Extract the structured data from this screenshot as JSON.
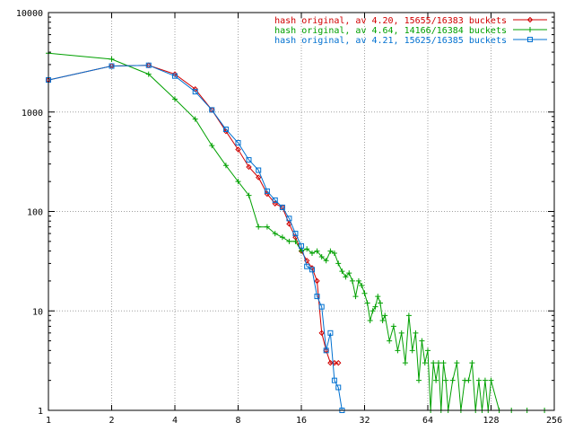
{
  "chart_data": {
    "type": "line",
    "title": "",
    "xlabel": "",
    "ylabel": "",
    "x_scale": "log2",
    "y_scale": "log10",
    "xlim": [
      1,
      256
    ],
    "ylim": [
      1,
      10000
    ],
    "grid": true,
    "legend_position": "top-right",
    "x_ticks": [
      {
        "value": 1,
        "label": "1"
      },
      {
        "value": 2,
        "label": "2"
      },
      {
        "value": 4,
        "label": "4"
      },
      {
        "value": 8,
        "label": "8"
      },
      {
        "value": 16,
        "label": "16"
      },
      {
        "value": 32,
        "label": "32"
      },
      {
        "value": 64,
        "label": "64"
      },
      {
        "value": 128,
        "label": "128"
      },
      {
        "value": 256,
        "label": "256"
      }
    ],
    "y_ticks": [
      {
        "value": 1,
        "label": "1"
      },
      {
        "value": 10,
        "label": "10"
      },
      {
        "value": 100,
        "label": "100"
      },
      {
        "value": 1000,
        "label": "1000"
      },
      {
        "value": 10000,
        "label": "10000"
      }
    ],
    "series": [
      {
        "name": "hash original, av 4.20, 15655/16383 buckets",
        "color": "#d00000",
        "marker": "diamond",
        "x": [
          1,
          2,
          3,
          4,
          5,
          6,
          7,
          8,
          9,
          10,
          11,
          12,
          13,
          14,
          15,
          16,
          17,
          18,
          19,
          20,
          21,
          22,
          23,
          24
        ],
        "y": [
          2100,
          2900,
          2950,
          2400,
          1700,
          1050,
          640,
          420,
          280,
          220,
          150,
          120,
          110,
          75,
          55,
          40,
          32,
          27,
          20,
          6,
          4,
          3,
          3,
          3
        ]
      },
      {
        "name": "hash original, av 4.64, 14166/16384 buckets",
        "color": "#00a000",
        "marker": "plus",
        "x": [
          1,
          2,
          3,
          4,
          5,
          6,
          7,
          8,
          9,
          10,
          11,
          12,
          13,
          14,
          15,
          16,
          17,
          18,
          19,
          20,
          21,
          22,
          23,
          24,
          25,
          26,
          27,
          28,
          29,
          30,
          31,
          32,
          33,
          34,
          35,
          36,
          37,
          38,
          39,
          40,
          42,
          44,
          46,
          48,
          50,
          52,
          54,
          56,
          58,
          60,
          62,
          64,
          66,
          68,
          70,
          72,
          74,
          76,
          78,
          80,
          84,
          88,
          92,
          96,
          100,
          104,
          108,
          112,
          116,
          120,
          124,
          128,
          140,
          160,
          190,
          230
        ],
        "y": [
          3900,
          3400,
          2400,
          1350,
          850,
          460,
          290,
          200,
          145,
          70,
          70,
          60,
          55,
          50,
          50,
          40,
          42,
          38,
          40,
          35,
          32,
          40,
          38,
          30,
          25,
          22,
          24,
          20,
          14,
          20,
          18,
          15,
          12,
          8,
          10,
          11,
          14,
          12,
          8,
          9,
          5,
          7,
          4,
          6,
          3,
          9,
          4,
          6,
          2,
          5,
          3,
          4,
          1,
          3,
          2,
          3,
          1,
          3,
          2,
          1,
          2,
          3,
          1,
          2,
          2,
          3,
          1,
          2,
          1,
          2,
          1,
          2,
          1,
          1,
          1,
          1
        ]
      },
      {
        "name": "hash original, av 4.21, 15625/16385 buckets",
        "color": "#0070d0",
        "marker": "square",
        "x": [
          1,
          2,
          3,
          4,
          5,
          6,
          7,
          8,
          9,
          10,
          11,
          12,
          13,
          14,
          15,
          16,
          17,
          18,
          19,
          20,
          21,
          22,
          23,
          24,
          25
        ],
        "y": [
          2100,
          2900,
          2950,
          2300,
          1600,
          1050,
          670,
          490,
          330,
          260,
          160,
          130,
          110,
          85,
          60,
          45,
          28,
          26,
          14,
          11,
          4,
          6,
          2,
          1.7,
          1
        ]
      }
    ]
  }
}
